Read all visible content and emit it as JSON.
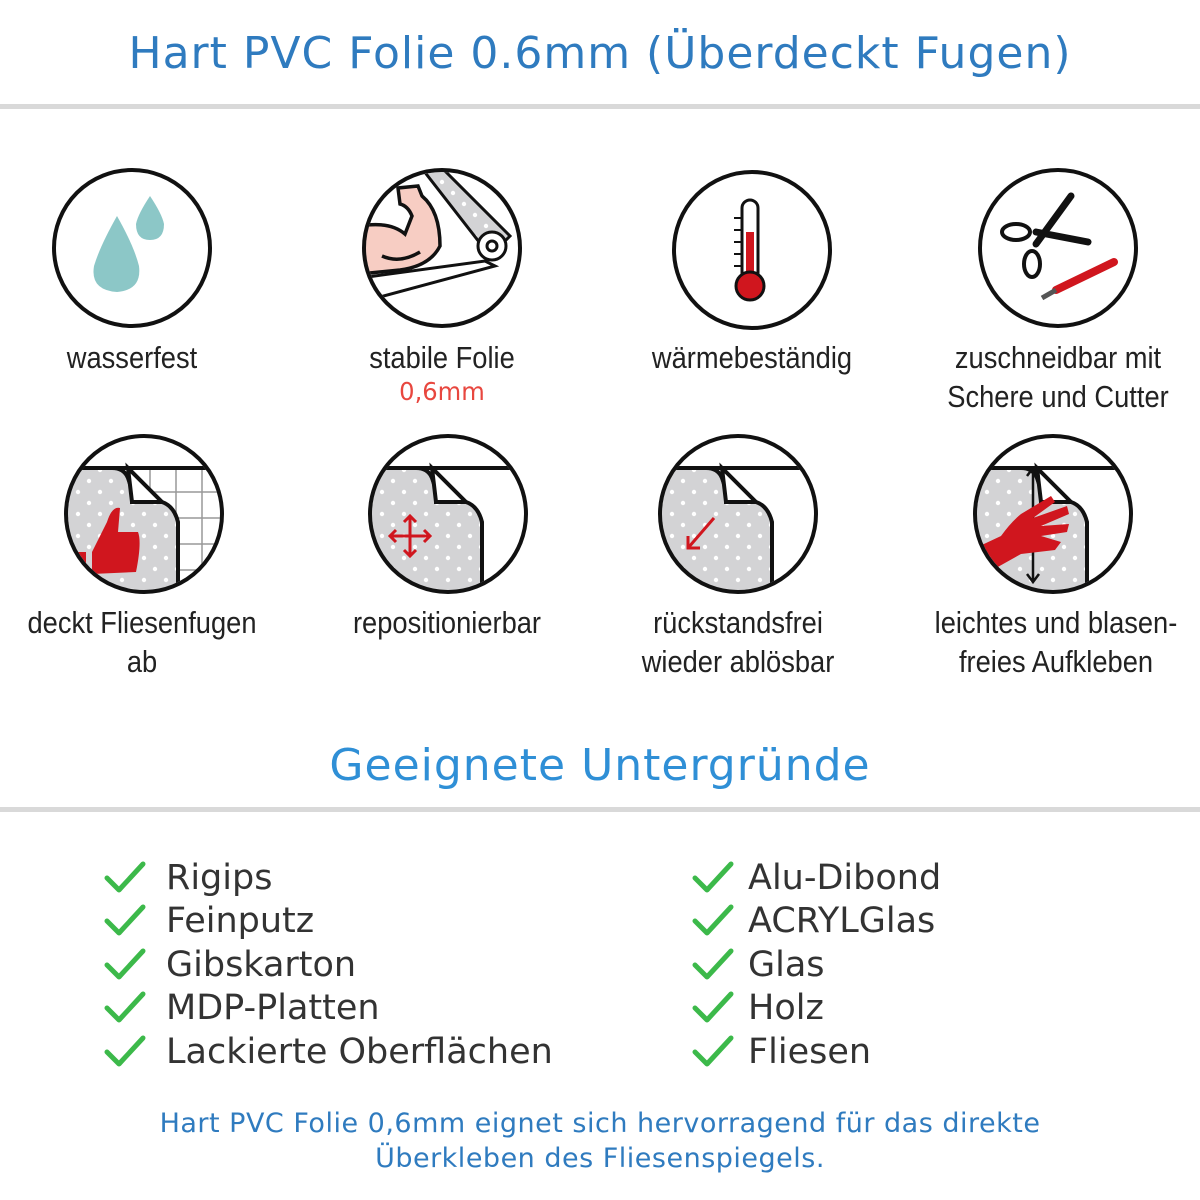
{
  "header": {
    "title": "Hart PVC Folie 0.6mm (Überdeckt Fugen)"
  },
  "features": [
    {
      "icon": "water-drops-icon",
      "label": "wasserfest"
    },
    {
      "icon": "flexed-arm-foil-icon",
      "label": "stabile Folie",
      "sublabel": "0,6mm"
    },
    {
      "icon": "thermometer-icon",
      "label": "wärmebeständig"
    },
    {
      "icon": "scissors-cutter-icon",
      "label": "zuschneidbar mit",
      "label2": "Schere und Cutter"
    },
    {
      "icon": "thumbs-up-tiles-icon",
      "label": "deckt Fliesenfugen ab"
    },
    {
      "icon": "move-arrows-icon",
      "label": "repositionierbar"
    },
    {
      "icon": "peel-arrow-icon",
      "label": "rückstandsfrei",
      "label2": "wieder ablösbar"
    },
    {
      "icon": "hand-smoothing-icon",
      "label": "leichtes und blasen-",
      "label2": "freies Aufkleben"
    }
  ],
  "surfaces": {
    "title": "Geeignete Untergründe",
    "left": [
      "Rigips",
      "Feinputz",
      "Gibskarton",
      "MDP-Platten",
      "Lackierte Oberflächen"
    ],
    "right": [
      "Alu-Dibond",
      "ACRYLGlas",
      "Glas",
      "Holz",
      "Fliesen"
    ]
  },
  "footer": {
    "line1": "Hart PVC Folie 0,6mm eignet sich hervorragend für das direkte",
    "line2": "Überkleben des Fliesenspiegels."
  },
  "colors": {
    "title": "#2f7bbf",
    "accent_red": "#d0161e",
    "check": "#3cb94a",
    "drop": "#8cc7c7"
  }
}
